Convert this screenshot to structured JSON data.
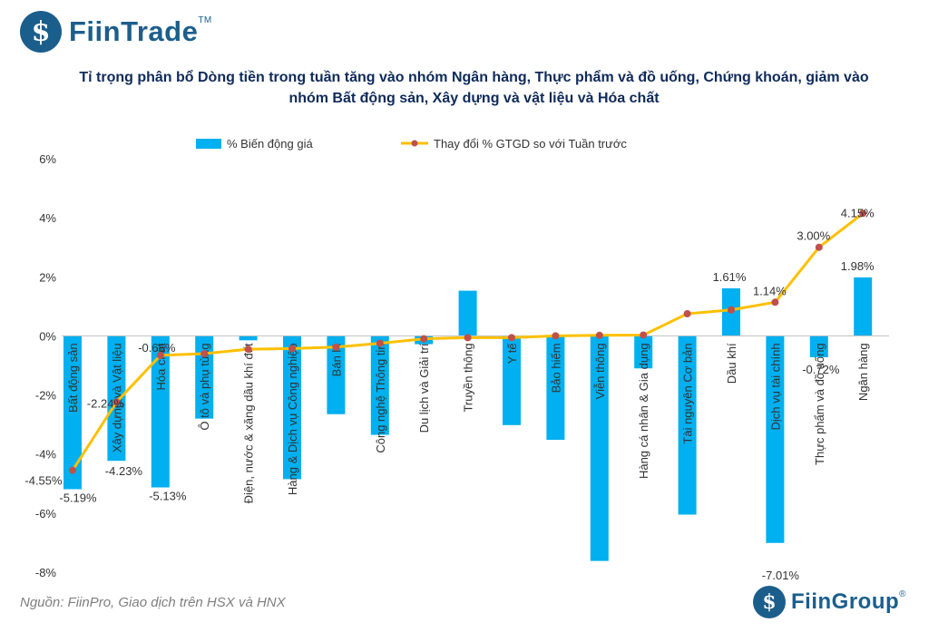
{
  "brand": {
    "name_top": "FiinTrade",
    "tm": "TM",
    "name_bottom": "FiinGroup",
    "reg": "®"
  },
  "title_line1": "Tỉ trọng phân bổ Dòng tiền trong tuần tăng vào nhóm Ngân hàng, Thực phẩm và đồ uống, Chứng khoán, giảm vào",
  "title_line2": "nhóm Bất động sản, Xây dựng và vật liệu và Hóa chất",
  "source": "Nguồn: FiinPro, Giao dịch trên HSX và HNX",
  "colors": {
    "bar": "#00b0f0",
    "line": "#ffc000",
    "marker": "#c0504d",
    "title": "#0f2a5a",
    "brand": "#1b5e8c"
  },
  "chart_data": {
    "type": "bar",
    "categories": [
      "Bất động sản",
      "Xây dựng và Vật liệu",
      "Hóa chất",
      "Ô tô và phụ tùng",
      "Điện, nước & xăng dầu khí đốt",
      "Hàng & Dịch vụ Công nghiệp",
      "Bán lẻ",
      "Công nghệ Thông tin",
      "Du lịch và Giải trí",
      "Truyền thông",
      "Y tế",
      "Bảo hiểm",
      "Viễn thông",
      "Hàng cá nhân & Gia dụng",
      "Tài nguyên Cơ bản",
      "Dầu khí",
      "Dịch vụ tài chính",
      "Thực phẩm và đồ uống",
      "Ngân hàng"
    ],
    "series": [
      {
        "name": "% Biến động giá",
        "type": "bar",
        "values": [
          -5.19,
          -4.23,
          -5.13,
          -2.8,
          -0.15,
          -4.85,
          -2.65,
          -3.35,
          -0.28,
          1.53,
          -3.02,
          -3.52,
          -7.62,
          -1.1,
          -6.05,
          1.61,
          -7.01,
          -0.72,
          1.98
        ]
      },
      {
        "name": "Thay đổi % GTGD so với Tuần trước",
        "type": "line",
        "values": [
          -4.55,
          -2.24,
          -0.66,
          -0.6,
          -0.45,
          -0.43,
          -0.38,
          -0.25,
          -0.1,
          -0.06,
          -0.06,
          0.0,
          0.02,
          0.03,
          0.75,
          0.88,
          1.14,
          3.0,
          4.15
        ]
      }
    ],
    "bar_labels": {
      "0": "-5.19%",
      "1": "-4.23%",
      "2": "-5.13%",
      "15": "1.61%",
      "16": "-7.01%",
      "17": "-0.72%",
      "18": "1.98%"
    },
    "line_labels": {
      "0": "-4.55%",
      "1": "-2.24%",
      "2": "-0.66%",
      "16": "1.14%",
      "17": "3.00%",
      "18": "4.15%"
    },
    "ylim": [
      -8,
      6
    ],
    "yticks": [
      "-8%",
      "-6%",
      "-4%",
      "-2%",
      "0%",
      "2%",
      "4%",
      "6%"
    ],
    "legend_position": "top",
    "grid": false
  }
}
